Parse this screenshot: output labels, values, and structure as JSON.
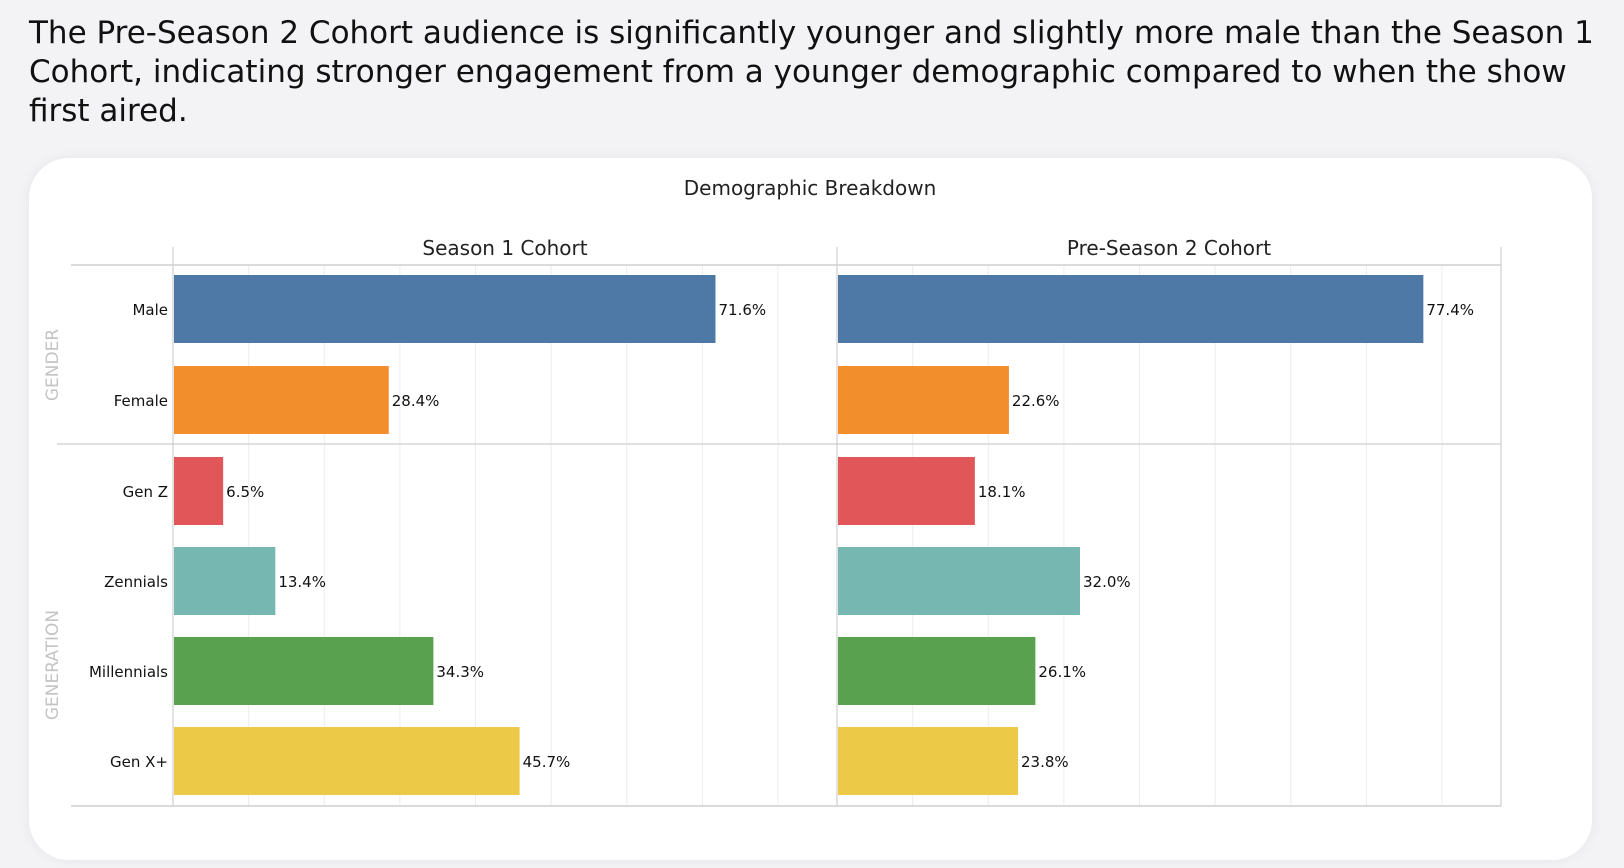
{
  "headline": "The Pre-Season 2 Cohort audience is significantly younger and slightly more male than the Season 1 Cohort, indicating stronger engagement from a younger demographic compared to when the show first aired.",
  "chart_data": {
    "type": "bar",
    "orientation": "horizontal",
    "title": "Demographic Breakdown",
    "xlim": [
      0,
      87.8
    ],
    "grid": true,
    "value_format": "percent",
    "groups": [
      {
        "name": "GENDER",
        "categories": [
          "Male",
          "Female"
        ]
      },
      {
        "name": "GENERATION",
        "categories": [
          "Gen Z",
          "Zennials",
          "Millennials",
          "Gen X+"
        ]
      }
    ],
    "categories": [
      "Male",
      "Female",
      "Gen Z",
      "Zennials",
      "Millennials",
      "Gen X+"
    ],
    "colors": [
      "#4e79a7",
      "#f28e2b",
      "#e15759",
      "#76b7b2",
      "#59a14f",
      "#edc948"
    ],
    "panels": [
      {
        "name": "Season 1 Cohort",
        "values": [
          71.6,
          28.4,
          6.5,
          13.4,
          34.3,
          45.7
        ],
        "labels": [
          "71.6%",
          "28.4%",
          "6.5%",
          "13.4%",
          "34.3%",
          "45.7%"
        ]
      },
      {
        "name": "Pre-Season 2 Cohort",
        "values": [
          77.4,
          22.6,
          18.1,
          32.0,
          26.1,
          23.8
        ],
        "labels": [
          "77.4%",
          "22.6%",
          "18.1%",
          "32.0%",
          "26.1%",
          "23.8%"
        ]
      }
    ]
  }
}
